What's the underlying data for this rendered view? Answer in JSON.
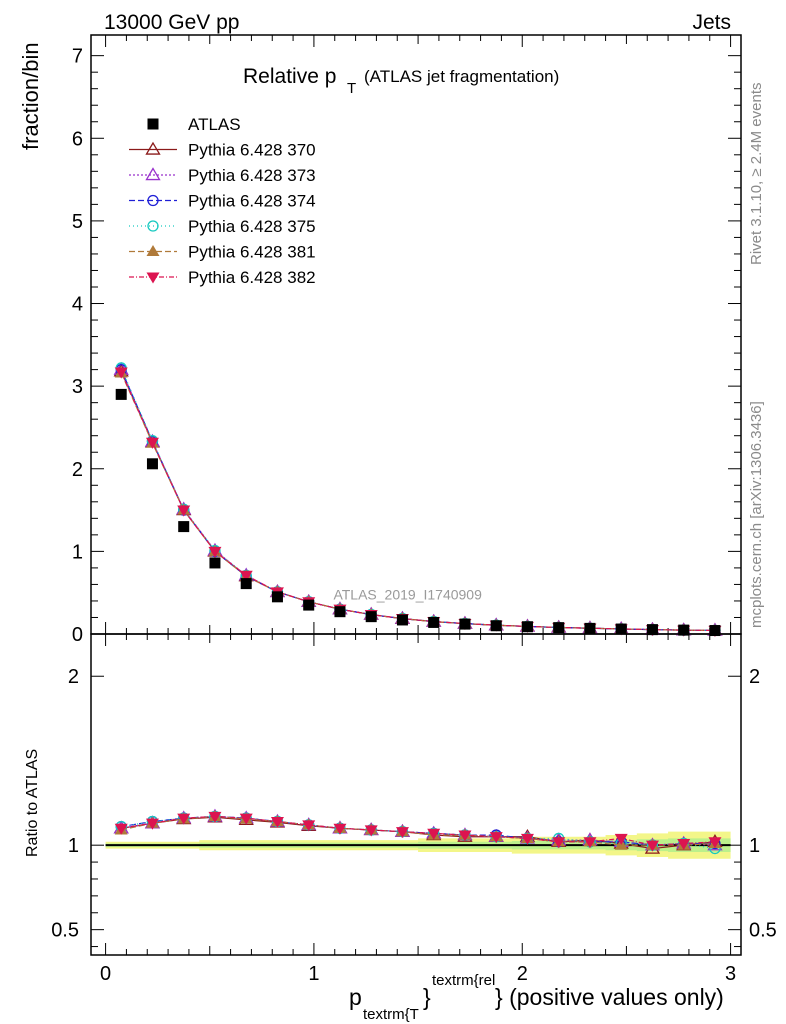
{
  "header": {
    "left": "13000 GeV pp",
    "right": "Jets"
  },
  "side_labels": {
    "top": "Rivet 3.1.10, ≥ 2.4M events",
    "bottom": "mcplots.cern.ch [arXiv:1306.3436]"
  },
  "chart_data": {
    "type": "line",
    "title": {
      "main": "Relative p",
      "subscript": "T",
      "suffix": "(ATLAS jet fragmentation)"
    },
    "watermark": "ATLAS_2019_I1740909",
    "ylabel": "fraction/bin",
    "ratio_ylabel": "Ratio to ATLAS",
    "xlabel": {
      "p": "p",
      "sub": "textrm{T",
      "brace": "}",
      "sup": "textrm{rel",
      "tail": "} (positive values only)"
    },
    "xlim": [
      -0.07,
      3.05
    ],
    "ylim": [
      0,
      7.25
    ],
    "ratio_ylim": [
      0.35,
      2.25
    ],
    "main_yticks": [
      "0",
      "1",
      "2",
      "3",
      "4",
      "5",
      "6",
      "7"
    ],
    "ratio_yticks": [
      "0.5",
      "1",
      "2"
    ],
    "xticks": [
      "0",
      "1",
      "2",
      "3"
    ],
    "grid": false,
    "legend_position": "top-left",
    "x": [
      0.075,
      0.225,
      0.375,
      0.525,
      0.675,
      0.825,
      0.975,
      1.125,
      1.275,
      1.425,
      1.575,
      1.725,
      1.875,
      2.025,
      2.175,
      2.325,
      2.475,
      2.625,
      2.775,
      2.925
    ],
    "data": {
      "name": "ATLAS",
      "values": [
        2.9,
        2.06,
        1.3,
        0.86,
        0.61,
        0.45,
        0.35,
        0.27,
        0.21,
        0.17,
        0.14,
        0.12,
        0.1,
        0.088,
        0.077,
        0.068,
        0.06,
        0.053,
        0.047,
        0.042
      ]
    },
    "band_upper": [
      1.02,
      1.02,
      1.02,
      1.03,
      1.03,
      1.03,
      1.03,
      1.03,
      1.03,
      1.03,
      1.04,
      1.04,
      1.04,
      1.05,
      1.05,
      1.05,
      1.06,
      1.07,
      1.08,
      1.08
    ],
    "band_lower": [
      0.98,
      0.98,
      0.98,
      0.97,
      0.97,
      0.97,
      0.97,
      0.97,
      0.97,
      0.97,
      0.96,
      0.96,
      0.96,
      0.95,
      0.95,
      0.95,
      0.94,
      0.93,
      0.92,
      0.92
    ],
    "series": [
      {
        "name": "Pythia 6.428 370",
        "color": "#8b1a1a",
        "dash": "",
        "marker": "triangle-up-open",
        "values": [
          3.18,
          2.32,
          1.5,
          1.0,
          0.7,
          0.51,
          0.39,
          0.3,
          0.235,
          0.186,
          0.15,
          0.126,
          0.106,
          0.092,
          0.079,
          0.07,
          0.061,
          0.052,
          0.047,
          0.043
        ],
        "ratio": [
          1.1,
          1.13,
          1.155,
          1.165,
          1.15,
          1.135,
          1.115,
          1.1,
          1.09,
          1.08,
          1.06,
          1.05,
          1.05,
          1.05,
          1.02,
          1.03,
          1.01,
          0.98,
          1.0,
          1.02
        ]
      },
      {
        "name": "Pythia 6.428 373",
        "color": "#9932cc",
        "dash": "2,2",
        "marker": "triangle-up-open",
        "values": [
          3.2,
          2.33,
          1.51,
          1.01,
          0.71,
          0.51,
          0.39,
          0.3,
          0.235,
          0.187,
          0.151,
          0.127,
          0.107,
          0.092,
          0.079,
          0.07,
          0.061,
          0.053,
          0.047,
          0.043
        ],
        "ratio": [
          1.1,
          1.13,
          1.16,
          1.17,
          1.16,
          1.14,
          1.12,
          1.1,
          1.09,
          1.08,
          1.07,
          1.06,
          1.05,
          1.04,
          1.03,
          1.03,
          1.02,
          1.0,
          1.01,
          1.0
        ]
      },
      {
        "name": "Pythia 6.428 374",
        "color": "#1f1fd6",
        "dash": "6,3",
        "marker": "circle-open",
        "values": [
          3.2,
          2.33,
          1.5,
          1.0,
          0.7,
          0.51,
          0.39,
          0.3,
          0.234,
          0.186,
          0.15,
          0.126,
          0.106,
          0.091,
          0.079,
          0.07,
          0.061,
          0.053,
          0.047,
          0.043
        ],
        "ratio": [
          1.11,
          1.14,
          1.16,
          1.17,
          1.16,
          1.14,
          1.12,
          1.1,
          1.09,
          1.08,
          1.07,
          1.06,
          1.06,
          1.04,
          1.02,
          1.02,
          1.02,
          1.0,
          1.01,
          1.01
        ]
      },
      {
        "name": "Pythia 6.428 375",
        "color": "#17c9c0",
        "dash": "1,3",
        "marker": "circle-open",
        "values": [
          3.22,
          2.34,
          1.51,
          1.01,
          0.71,
          0.51,
          0.39,
          0.3,
          0.235,
          0.187,
          0.151,
          0.127,
          0.107,
          0.092,
          0.08,
          0.07,
          0.061,
          0.053,
          0.047,
          0.043
        ],
        "ratio": [
          1.11,
          1.14,
          1.16,
          1.17,
          1.16,
          1.14,
          1.12,
          1.1,
          1.09,
          1.08,
          1.07,
          1.06,
          1.05,
          1.04,
          1.04,
          1.02,
          1.01,
          1.0,
          1.01,
          0.98
        ]
      },
      {
        "name": "Pythia 6.428 381",
        "color": "#b07a3a",
        "dash": "6,3",
        "marker": "triangle-up-filled",
        "values": [
          3.16,
          2.31,
          1.5,
          1.0,
          0.7,
          0.51,
          0.39,
          0.3,
          0.234,
          0.186,
          0.15,
          0.126,
          0.106,
          0.091,
          0.079,
          0.07,
          0.061,
          0.053,
          0.047,
          0.043
        ],
        "ratio": [
          1.09,
          1.13,
          1.155,
          1.17,
          1.155,
          1.14,
          1.12,
          1.1,
          1.09,
          1.08,
          1.06,
          1.06,
          1.05,
          1.04,
          1.02,
          1.02,
          1.0,
          1.0,
          1.0,
          1.01
        ]
      },
      {
        "name": "Pythia 6.428 382",
        "color": "#dc1450",
        "dash": "5,2,1,2",
        "marker": "triangle-down-filled",
        "values": [
          3.17,
          2.32,
          1.5,
          1.0,
          0.71,
          0.51,
          0.39,
          0.3,
          0.235,
          0.187,
          0.151,
          0.127,
          0.107,
          0.092,
          0.079,
          0.07,
          0.062,
          0.053,
          0.047,
          0.043
        ],
        "ratio": [
          1.1,
          1.13,
          1.16,
          1.17,
          1.16,
          1.14,
          1.12,
          1.1,
          1.09,
          1.08,
          1.07,
          1.06,
          1.05,
          1.04,
          1.02,
          1.02,
          1.04,
          1.0,
          1.01,
          1.02
        ]
      }
    ]
  }
}
